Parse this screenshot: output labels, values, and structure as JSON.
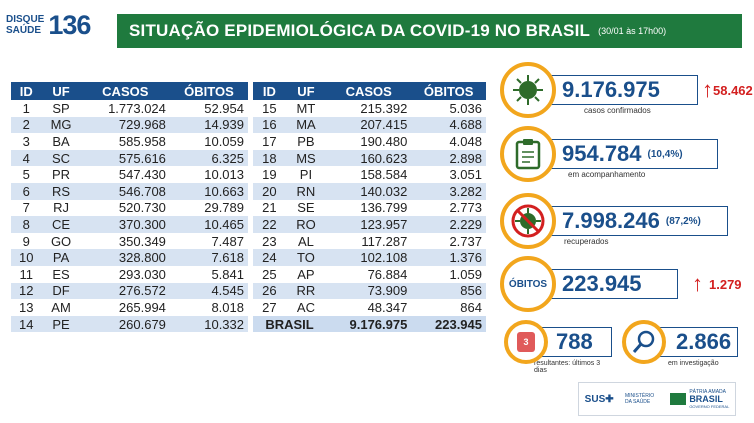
{
  "logo": {
    "line1": "DISQUE",
    "line2": "SAÚDE",
    "number": "136"
  },
  "header": {
    "title": "SITUAÇÃO EPIDEMIOLÓGICA DA COVID-19 NO BRASIL",
    "date": "(30/01 às 17h00)"
  },
  "table": {
    "columns": [
      "ID",
      "UF",
      "CASOS",
      "ÓBITOS"
    ],
    "left": [
      [
        "1",
        "SP",
        "1.773.024",
        "52.954"
      ],
      [
        "2",
        "MG",
        "729.968",
        "14.939"
      ],
      [
        "3",
        "BA",
        "585.958",
        "10.059"
      ],
      [
        "4",
        "SC",
        "575.616",
        "6.325"
      ],
      [
        "5",
        "PR",
        "547.430",
        "10.013"
      ],
      [
        "6",
        "RS",
        "546.708",
        "10.663"
      ],
      [
        "7",
        "RJ",
        "520.730",
        "29.789"
      ],
      [
        "8",
        "CE",
        "370.300",
        "10.465"
      ],
      [
        "9",
        "GO",
        "350.349",
        "7.487"
      ],
      [
        "10",
        "PA",
        "328.800",
        "7.618"
      ],
      [
        "11",
        "ES",
        "293.030",
        "5.841"
      ],
      [
        "12",
        "DF",
        "276.572",
        "4.545"
      ],
      [
        "13",
        "AM",
        "265.994",
        "8.018"
      ],
      [
        "14",
        "PE",
        "260.679",
        "10.332"
      ]
    ],
    "right": [
      [
        "15",
        "MT",
        "215.392",
        "5.036"
      ],
      [
        "16",
        "MA",
        "207.415",
        "4.688"
      ],
      [
        "17",
        "PB",
        "190.480",
        "4.048"
      ],
      [
        "18",
        "MS",
        "160.623",
        "2.898"
      ],
      [
        "19",
        "PI",
        "158.584",
        "3.051"
      ],
      [
        "20",
        "RN",
        "140.032",
        "3.282"
      ],
      [
        "21",
        "SE",
        "136.799",
        "2.773"
      ],
      [
        "22",
        "RO",
        "123.957",
        "2.229"
      ],
      [
        "23",
        "AL",
        "117.287",
        "2.737"
      ],
      [
        "24",
        "TO",
        "102.108",
        "1.376"
      ],
      [
        "25",
        "AP",
        "76.884",
        "1.059"
      ],
      [
        "26",
        "RR",
        "73.909",
        "856"
      ],
      [
        "27",
        "AC",
        "48.347",
        "864"
      ]
    ],
    "total": {
      "label": "BRASIL",
      "cases": "9.176.975",
      "deaths": "223.945"
    }
  },
  "stats": {
    "confirmed": {
      "value": "9.176.975",
      "delta": "58.462",
      "caption": "casos confirmados"
    },
    "monitoring": {
      "value": "954.784",
      "pct": "(10,4%)",
      "caption": "em acompanhamento"
    },
    "recovered": {
      "value": "7.998.246",
      "pct": "(87,2%)",
      "caption": "recuperados"
    },
    "deaths": {
      "label": "ÓBITOS",
      "value": "223.945",
      "delta": "1.279"
    },
    "recent": {
      "value": "788",
      "caption": "resultantes: últimos 3 dias",
      "badge": "3"
    },
    "investigation": {
      "value": "2.866",
      "caption": "em investigação"
    }
  },
  "footer": {
    "sus": "SUS",
    "ministry": "MINISTÉRIO DA SAÚDE",
    "brand1": "PÁTRIA AMADA",
    "brand2": "BRASIL",
    "brand3": "GOVERNO FEDERAL"
  },
  "colors": {
    "blue": "#1a4f8b",
    "green": "#1f7a3e",
    "orange": "#f2a61d",
    "red": "#d32020"
  }
}
